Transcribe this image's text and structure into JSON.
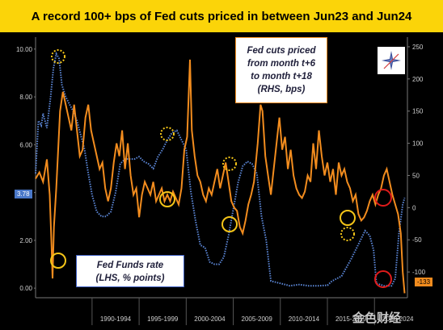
{
  "title": "A record 100+ bps of Fed cuts priced in between Jun23 and Jun24",
  "callouts": {
    "fed_cuts": [
      "Fed cuts priced",
      "from month t+6",
      "to month t+18",
      "(RHS, bps)"
    ],
    "fed_funds": [
      "Fed Funds rate",
      "(LHS, % points)"
    ]
  },
  "last_values": {
    "lhs": "3.78",
    "rhs": "-133"
  },
  "watermark": "金色财经",
  "colors": {
    "fed_funds": "#5b86d6",
    "fed_cuts": "#f28c1e",
    "highlight_yellow": "#f5c518",
    "highlight_red": "#e01b1b",
    "title_bg": "#fbd409"
  },
  "chart_data": {
    "type": "line",
    "x_tick_labels": [
      "1990-1994",
      "1995-1999",
      "2000-2004",
      "2005-2009",
      "2010-2014",
      "2015-2019",
      "2020-2024"
    ],
    "x_range": [
      1984,
      2023.5
    ],
    "y_left": {
      "ticks": [
        "0.00",
        "2.00",
        "4.00",
        "6.00",
        "8.00",
        "10.00"
      ],
      "range": [
        -0.4,
        10.5
      ]
    },
    "y_right": {
      "ticks": [
        "-100",
        "-50",
        "0",
        "50",
        "100",
        "150",
        "200",
        "250"
      ],
      "range": [
        -140,
        265
      ]
    },
    "series": [
      {
        "axis": "left",
        "style": "dotted",
        "points": [
          [
            1984.0,
            4.8
          ],
          [
            1984.3,
            7.0
          ],
          [
            1984.6,
            6.8
          ],
          [
            1984.8,
            7.3
          ],
          [
            1985.2,
            6.7
          ],
          [
            1985.6,
            8.0
          ],
          [
            1985.9,
            9.2
          ],
          [
            1986.2,
            9.8
          ],
          [
            1986.5,
            9.6
          ],
          [
            1986.8,
            8.5
          ],
          [
            1987.2,
            8.0
          ],
          [
            1987.6,
            7.7
          ],
          [
            1988.0,
            7.4
          ],
          [
            1988.4,
            7.0
          ],
          [
            1988.8,
            6.4
          ],
          [
            1989.2,
            5.8
          ],
          [
            1989.6,
            4.8
          ],
          [
            1990.0,
            3.9
          ],
          [
            1990.5,
            3.2
          ],
          [
            1991.0,
            3.0
          ],
          [
            1991.5,
            3.0
          ],
          [
            1992.0,
            3.2
          ],
          [
            1992.5,
            4.0
          ],
          [
            1993.0,
            5.2
          ],
          [
            1993.5,
            5.4
          ],
          [
            1994.0,
            5.4
          ],
          [
            1994.5,
            5.4
          ],
          [
            1995.0,
            5.5
          ],
          [
            1995.5,
            5.3
          ],
          [
            1996.0,
            5.2
          ],
          [
            1996.5,
            5.0
          ],
          [
            1997.0,
            5.5
          ],
          [
            1997.5,
            5.8
          ],
          [
            1998.0,
            6.2
          ],
          [
            1998.5,
            6.5
          ],
          [
            1999.0,
            6.6
          ],
          [
            1999.5,
            6.2
          ],
          [
            2000.0,
            5.8
          ],
          [
            2000.5,
            4.0
          ],
          [
            2001.0,
            2.8
          ],
          [
            2001.5,
            1.8
          ],
          [
            2002.0,
            1.7
          ],
          [
            2002.5,
            1.1
          ],
          [
            2003.0,
            1.0
          ],
          [
            2003.5,
            1.0
          ],
          [
            2004.0,
            1.3
          ],
          [
            2004.5,
            2.2
          ],
          [
            2005.0,
            3.3
          ],
          [
            2005.5,
            4.4
          ],
          [
            2006.0,
            5.1
          ],
          [
            2006.5,
            5.3
          ],
          [
            2007.0,
            5.2
          ],
          [
            2007.5,
            4.8
          ],
          [
            2008.0,
            3.0
          ],
          [
            2008.5,
            2.0
          ],
          [
            2009.0,
            0.3
          ],
          [
            2010.0,
            0.2
          ],
          [
            2011.0,
            0.1
          ],
          [
            2012.0,
            0.15
          ],
          [
            2013.0,
            0.1
          ],
          [
            2014.0,
            0.1
          ],
          [
            2015.0,
            0.12
          ],
          [
            2015.5,
            0.3
          ],
          [
            2016.5,
            0.5
          ],
          [
            2017.5,
            1.2
          ],
          [
            2018.5,
            2.0
          ],
          [
            2019.0,
            2.4
          ],
          [
            2019.5,
            2.2
          ],
          [
            2019.9,
            1.6
          ],
          [
            2020.2,
            0.2
          ],
          [
            2021.0,
            0.1
          ],
          [
            2021.8,
            0.1
          ],
          [
            2022.2,
            0.4
          ],
          [
            2022.6,
            2.3
          ],
          [
            2023.0,
            3.5
          ],
          [
            2023.2,
            3.78
          ]
        ]
      },
      {
        "axis": "right",
        "style": "solid",
        "points": [
          [
            1984.0,
            45
          ],
          [
            1984.4,
            55
          ],
          [
            1984.8,
            40
          ],
          [
            1985.2,
            75
          ],
          [
            1985.5,
            20
          ],
          [
            1985.7,
            -60
          ],
          [
            1985.8,
            -110
          ],
          [
            1985.95,
            -30
          ],
          [
            1986.2,
            30
          ],
          [
            1986.6,
            150
          ],
          [
            1986.9,
            180
          ],
          [
            1987.2,
            160
          ],
          [
            1987.5,
            140
          ],
          [
            1987.8,
            120
          ],
          [
            1988.1,
            160
          ],
          [
            1988.4,
            120
          ],
          [
            1988.7,
            80
          ],
          [
            1989.0,
            90
          ],
          [
            1989.3,
            140
          ],
          [
            1989.6,
            160
          ],
          [
            1989.9,
            120
          ],
          [
            1990.2,
            100
          ],
          [
            1990.5,
            80
          ],
          [
            1990.8,
            60
          ],
          [
            1991.1,
            70
          ],
          [
            1991.4,
            30
          ],
          [
            1991.7,
            10
          ],
          [
            1992.0,
            30
          ],
          [
            1992.3,
            70
          ],
          [
            1992.6,
            100
          ],
          [
            1992.9,
            80
          ],
          [
            1993.2,
            120
          ],
          [
            1993.5,
            60
          ],
          [
            1993.8,
            100
          ],
          [
            1994.1,
            50
          ],
          [
            1994.4,
            20
          ],
          [
            1994.7,
            30
          ],
          [
            1995.0,
            -15
          ],
          [
            1995.3,
            20
          ],
          [
            1995.6,
            40
          ],
          [
            1995.9,
            30
          ],
          [
            1996.2,
            20
          ],
          [
            1996.5,
            40
          ],
          [
            1996.8,
            10
          ],
          [
            1997.1,
            20
          ],
          [
            1997.4,
            30
          ],
          [
            1997.7,
            10
          ],
          [
            1998.0,
            20
          ],
          [
            1998.3,
            10
          ],
          [
            1998.6,
            25
          ],
          [
            1998.9,
            15
          ],
          [
            1999.2,
            5
          ],
          [
            1999.5,
            30
          ],
          [
            1999.8,
            90
          ],
          [
            2000.1,
            110
          ],
          [
            2000.4,
            230
          ],
          [
            2000.6,
            120
          ],
          [
            2000.9,
            80
          ],
          [
            2001.2,
            50
          ],
          [
            2001.5,
            40
          ],
          [
            2001.8,
            20
          ],
          [
            2002.1,
            10
          ],
          [
            2002.4,
            30
          ],
          [
            2002.7,
            20
          ],
          [
            2003.0,
            40
          ],
          [
            2003.3,
            60
          ],
          [
            2003.6,
            30
          ],
          [
            2003.9,
            50
          ],
          [
            2004.2,
            70
          ],
          [
            2004.5,
            40
          ],
          [
            2004.8,
            10
          ],
          [
            2005.1,
            0
          ],
          [
            2005.4,
            -5
          ],
          [
            2005.7,
            -30
          ],
          [
            2006.0,
            -40
          ],
          [
            2006.3,
            -20
          ],
          [
            2006.6,
            5
          ],
          [
            2006.9,
            20
          ],
          [
            2007.2,
            40
          ],
          [
            2007.6,
            100
          ],
          [
            2007.9,
            160
          ],
          [
            2008.1,
            150
          ],
          [
            2008.4,
            80
          ],
          [
            2008.7,
            50
          ],
          [
            2009.0,
            20
          ],
          [
            2009.3,
            60
          ],
          [
            2009.6,
            100
          ],
          [
            2009.9,
            140
          ],
          [
            2010.2,
            90
          ],
          [
            2010.5,
            110
          ],
          [
            2010.8,
            60
          ],
          [
            2011.1,
            90
          ],
          [
            2011.4,
            50
          ],
          [
            2011.7,
            30
          ],
          [
            2012.0,
            20
          ],
          [
            2012.3,
            15
          ],
          [
            2012.6,
            25
          ],
          [
            2012.9,
            50
          ],
          [
            2013.2,
            40
          ],
          [
            2013.5,
            100
          ],
          [
            2013.8,
            60
          ],
          [
            2014.1,
            120
          ],
          [
            2014.4,
            80
          ],
          [
            2014.7,
            50
          ],
          [
            2015.0,
            70
          ],
          [
            2015.3,
            40
          ],
          [
            2015.6,
            60
          ],
          [
            2015.9,
            20
          ],
          [
            2016.2,
            70
          ],
          [
            2016.5,
            50
          ],
          [
            2016.8,
            60
          ],
          [
            2017.1,
            40
          ],
          [
            2017.4,
            30
          ],
          [
            2017.7,
            10
          ],
          [
            2018.0,
            20
          ],
          [
            2018.3,
            -10
          ],
          [
            2018.6,
            -20
          ],
          [
            2018.9,
            -15
          ],
          [
            2019.2,
            -5
          ],
          [
            2019.5,
            10
          ],
          [
            2019.8,
            20
          ],
          [
            2020.1,
            5
          ],
          [
            2020.4,
            20
          ],
          [
            2020.7,
            30
          ],
          [
            2021.0,
            50
          ],
          [
            2021.3,
            60
          ],
          [
            2021.6,
            40
          ],
          [
            2021.9,
            20
          ],
          [
            2022.2,
            5
          ],
          [
            2022.5,
            -10
          ],
          [
            2022.8,
            -40
          ],
          [
            2023.0,
            -100
          ],
          [
            2023.2,
            -133
          ]
        ]
      }
    ]
  }
}
